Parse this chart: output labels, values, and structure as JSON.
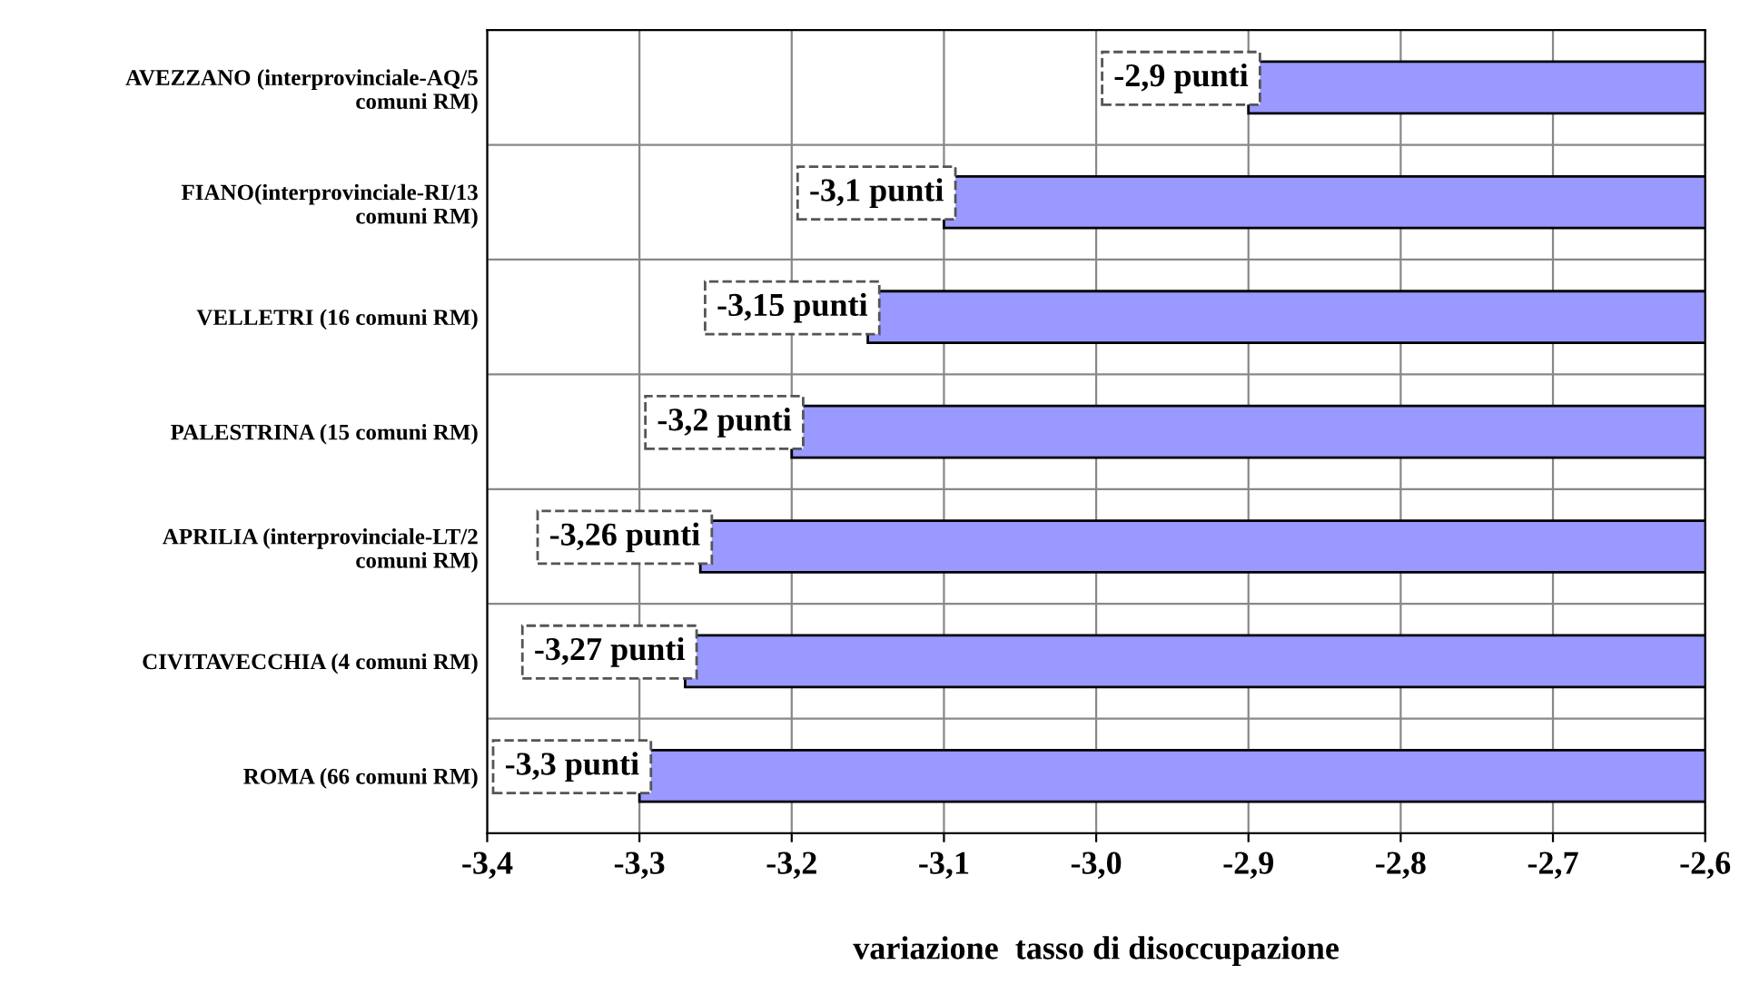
{
  "chart_data": {
    "type": "bar",
    "orientation": "horizontal",
    "xlabel": "variazione  tasso di disoccupazione",
    "categories": [
      "AVEZZANO (interprovinciale-AQ/5 comuni RM)",
      "FIANO(interprovinciale-RI/13 comuni RM)",
      "VELLETRI (16 comuni RM)",
      "PALESTRINA (15 comuni RM)",
      "APRILIA (interprovinciale-LT/2 comuni RM)",
      "CIVITAVECCHIA (4 comuni RM)",
      "ROMA (66 comuni RM)"
    ],
    "values": [
      -2.9,
      -3.1,
      -3.15,
      -3.2,
      -3.26,
      -3.27,
      -3.3
    ],
    "value_labels": [
      "-2,9 punti",
      "-3,1 punti",
      "-3,15 punti",
      "-3,2 punti",
      "-3,26 punti",
      "-3,27 punti",
      "-3,3 punti"
    ],
    "color": "#9999ff",
    "xlim": [
      -3.4,
      -2.6
    ],
    "xticks": [
      {
        "value": -3.4,
        "label": "-3,4"
      },
      {
        "value": -3.3,
        "label": "-3,3"
      },
      {
        "value": -3.2,
        "label": "-3,2"
      },
      {
        "value": -3.1,
        "label": "-3,1"
      },
      {
        "value": -3.0,
        "label": "-3,0"
      },
      {
        "value": -2.9,
        "label": "-2,9"
      },
      {
        "value": -2.8,
        "label": "-2,8"
      },
      {
        "value": -2.7,
        "label": "-2,7"
      },
      {
        "value": -2.6,
        "label": "-2,6"
      }
    ],
    "grid": true
  }
}
